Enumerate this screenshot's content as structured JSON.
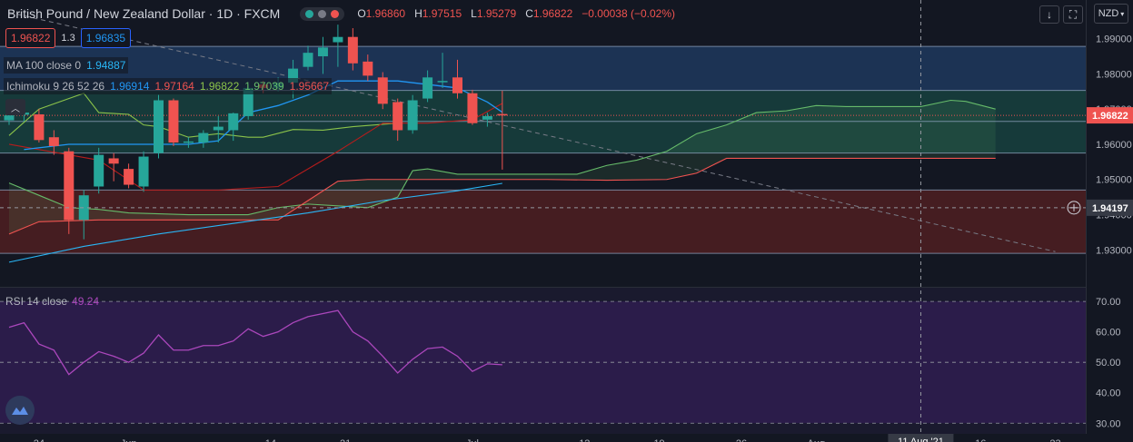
{
  "header": {
    "title": "British Pound / New Zealand Dollar · 1D · FXCM",
    "ohlc": {
      "o_label": "O",
      "o": "1.96860",
      "h_label": "H",
      "h": "1.97515",
      "l_label": "L",
      "l": "1.95279",
      "c_label": "C",
      "c": "1.96822",
      "change": "−0.00038 (−0.02%)"
    },
    "status_dot_colors": [
      "#26a69a",
      "#787b86",
      "#ef5350"
    ]
  },
  "price_boxes": {
    "sell": "1.96822",
    "spread": "1.3",
    "buy": "1.96835"
  },
  "indicators": {
    "ma": {
      "name": "MA 100 close 0",
      "value": "1.94887",
      "color": "#29b6f6"
    },
    "ichimoku": {
      "name": "Ichimoku 9 26 52 26",
      "values": [
        {
          "v": "1.96914",
          "color": "#2196f3"
        },
        {
          "v": "1.97164",
          "color": "#ef5350"
        },
        {
          "v": "1.96822",
          "color": "#8bc34a"
        },
        {
          "v": "1.97039",
          "color": "#66bb6a"
        },
        {
          "v": "1.95667",
          "color": "#ef5350"
        }
      ]
    },
    "rsi": {
      "name": "RSI 14 close",
      "value": "49.24",
      "color": "#ab47bc"
    }
  },
  "toolbar": {
    "down_icon": "arrow-down-icon",
    "fullscreen_icon": "fullscreen-icon",
    "currency": "NZD"
  },
  "price_axis": {
    "ticks": [
      "1.99000",
      "1.98000",
      "1.97000",
      "1.96000",
      "1.95000",
      "1.94000",
      "1.93000"
    ],
    "last_price": "1.96822",
    "crosshair_price": "1.94197"
  },
  "rsi_axis": {
    "ticks": [
      "70.00",
      "60.00",
      "50.00",
      "40.00",
      "30.00"
    ]
  },
  "time_axis": {
    "labels": [
      "24",
      "Jun",
      "14",
      "21",
      "Jul",
      "12",
      "19",
      "26",
      "Aug",
      "16",
      "23"
    ],
    "crosshair_label": "11 Aug '21"
  },
  "chart_data": {
    "type": "candlestick",
    "candles": [
      {
        "o": 1.9668,
        "h": 1.9692,
        "l": 1.9655,
        "c": 1.9682
      },
      {
        "o": 1.9684,
        "h": 1.9705,
        "l": 1.9665,
        "c": 1.969
      },
      {
        "o": 1.9685,
        "h": 1.97,
        "l": 1.9605,
        "c": 1.9612
      },
      {
        "o": 1.962,
        "h": 1.964,
        "l": 1.957,
        "c": 1.9595
      },
      {
        "o": 1.958,
        "h": 1.959,
        "l": 1.9345,
        "c": 1.9385
      },
      {
        "o": 1.9385,
        "h": 1.947,
        "l": 1.933,
        "c": 1.9455
      },
      {
        "o": 1.948,
        "h": 1.959,
        "l": 1.946,
        "c": 1.957
      },
      {
        "o": 1.956,
        "h": 1.9575,
        "l": 1.9495,
        "c": 1.9545
      },
      {
        "o": 1.953,
        "h": 1.9545,
        "l": 1.9475,
        "c": 1.9485
      },
      {
        "o": 1.948,
        "h": 1.958,
        "l": 1.9465,
        "c": 1.9565
      },
      {
        "o": 1.9575,
        "h": 1.974,
        "l": 1.956,
        "c": 1.9725
      },
      {
        "o": 1.9725,
        "h": 1.973,
        "l": 1.9595,
        "c": 1.9605
      },
      {
        "o": 1.9605,
        "h": 1.962,
        "l": 1.959,
        "c": 1.9608
      },
      {
        "o": 1.9605,
        "h": 1.964,
        "l": 1.959,
        "c": 1.9632
      },
      {
        "o": 1.964,
        "h": 1.968,
        "l": 1.9605,
        "c": 1.965
      },
      {
        "o": 1.964,
        "h": 1.969,
        "l": 1.961,
        "c": 1.9688
      },
      {
        "o": 1.968,
        "h": 1.977,
        "l": 1.967,
        "c": 1.976
      },
      {
        "o": 1.977,
        "h": 1.978,
        "l": 1.9745,
        "c": 1.976
      },
      {
        "o": 1.976,
        "h": 1.979,
        "l": 1.975,
        "c": 1.9775
      },
      {
        "o": 1.9775,
        "h": 1.984,
        "l": 1.973,
        "c": 1.9815
      },
      {
        "o": 1.982,
        "h": 1.988,
        "l": 1.981,
        "c": 1.986
      },
      {
        "o": 1.985,
        "h": 1.9905,
        "l": 1.98,
        "c": 1.9875
      },
      {
        "o": 1.989,
        "h": 1.994,
        "l": 1.982,
        "c": 1.9905
      },
      {
        "o": 1.9905,
        "h": 1.993,
        "l": 1.981,
        "c": 1.983
      },
      {
        "o": 1.9835,
        "h": 1.9855,
        "l": 1.978,
        "c": 1.9795
      },
      {
        "o": 1.979,
        "h": 1.9805,
        "l": 1.97,
        "c": 1.9715
      },
      {
        "o": 1.972,
        "h": 1.973,
        "l": 1.961,
        "c": 1.964
      },
      {
        "o": 1.964,
        "h": 1.974,
        "l": 1.963,
        "c": 1.9725
      },
      {
        "o": 1.973,
        "h": 1.981,
        "l": 1.972,
        "c": 1.979
      },
      {
        "o": 1.978,
        "h": 1.986,
        "l": 1.976,
        "c": 1.978
      },
      {
        "o": 1.979,
        "h": 1.984,
        "l": 1.973,
        "c": 1.9745
      },
      {
        "o": 1.9745,
        "h": 1.9755,
        "l": 1.9655,
        "c": 1.966
      },
      {
        "o": 1.967,
        "h": 1.969,
        "l": 1.965,
        "c": 1.968
      },
      {
        "o": 1.9686,
        "h": 1.9752,
        "l": 1.9528,
        "c": 1.9682
      }
    ],
    "ma100": [
      [
        0,
        1.9265
      ],
      [
        5,
        1.931
      ],
      [
        10,
        1.9345
      ],
      [
        15,
        1.9375
      ],
      [
        20,
        1.9405
      ],
      [
        25,
        1.944
      ],
      [
        30,
        1.9468
      ],
      [
        33,
        1.9489
      ]
    ],
    "tenkan": [
      [
        1,
        1.9585
      ],
      [
        4,
        1.96
      ],
      [
        8,
        1.96
      ],
      [
        12,
        1.96
      ],
      [
        14,
        1.961
      ],
      [
        16,
        1.969
      ],
      [
        18,
        1.971
      ],
      [
        20,
        1.974
      ],
      [
        22,
        1.978
      ],
      [
        24,
        1.978
      ],
      [
        26,
        1.978
      ],
      [
        28,
        1.977
      ],
      [
        30,
        1.976
      ],
      [
        32,
        1.972
      ],
      [
        33,
        1.9691
      ]
    ],
    "kijun": [
      [
        0,
        1.96
      ],
      [
        6,
        1.9555
      ],
      [
        9,
        1.947
      ],
      [
        14,
        1.947
      ],
      [
        18,
        1.948
      ],
      [
        22,
        1.958
      ],
      [
        25,
        1.966
      ],
      [
        28,
        1.966
      ],
      [
        31,
        1.967
      ],
      [
        33,
        1.9716
      ]
    ],
    "chikou": [
      [
        0,
        1.9625
      ],
      [
        2,
        1.97
      ],
      [
        5,
        1.9745
      ],
      [
        6,
        1.969
      ],
      [
        8,
        1.9685
      ],
      [
        9,
        1.9655
      ],
      [
        10,
        1.965
      ],
      [
        12,
        1.962
      ],
      [
        14,
        1.963
      ],
      [
        16,
        1.962
      ],
      [
        17,
        1.962
      ],
      [
        19,
        1.9642
      ],
      [
        21,
        1.964
      ],
      [
        23,
        1.965
      ],
      [
        26,
        1.966
      ]
    ],
    "senkou_a": [
      [
        0,
        1.949
      ],
      [
        2,
        1.9455
      ],
      [
        4,
        1.942
      ],
      [
        6,
        1.9415
      ],
      [
        8,
        1.9405
      ],
      [
        12,
        1.94
      ],
      [
        16,
        1.94
      ],
      [
        18,
        1.942
      ],
      [
        20,
        1.943
      ],
      [
        24,
        1.942
      ],
      [
        26,
        1.945
      ],
      [
        27,
        1.9525
      ],
      [
        28,
        1.953
      ],
      [
        30,
        1.9515
      ],
      [
        34,
        1.9515
      ],
      [
        38,
        1.9515
      ],
      [
        40,
        1.954
      ],
      [
        42,
        1.9555
      ],
      [
        44,
        1.958
      ],
      [
        46,
        1.963
      ],
      [
        48,
        1.9655
      ],
      [
        50,
        1.969
      ],
      [
        52,
        1.9695
      ],
      [
        54,
        1.971
      ],
      [
        56,
        1.9707
      ],
      [
        58,
        1.9707
      ],
      [
        61,
        1.9707
      ],
      [
        63,
        1.9725
      ],
      [
        64,
        1.9722
      ],
      [
        66,
        1.97
      ]
    ],
    "senkou_b": [
      [
        0,
        1.9345
      ],
      [
        2,
        1.938
      ],
      [
        6,
        1.9385
      ],
      [
        10,
        1.9385
      ],
      [
        14,
        1.9385
      ],
      [
        18,
        1.9385
      ],
      [
        20,
        1.944
      ],
      [
        22,
        1.9495
      ],
      [
        24,
        1.95
      ],
      [
        28,
        1.95
      ],
      [
        32,
        1.95
      ],
      [
        36,
        1.95
      ],
      [
        40,
        1.9498
      ],
      [
        44,
        1.95
      ],
      [
        46,
        1.9518
      ],
      [
        48,
        1.956
      ],
      [
        52,
        1.956
      ],
      [
        56,
        1.956
      ],
      [
        60,
        1.956
      ],
      [
        66,
        1.956
      ]
    ],
    "rsi": [
      [
        0,
        61.5
      ],
      [
        1,
        63
      ],
      [
        2,
        56
      ],
      [
        3,
        54
      ],
      [
        4,
        46
      ],
      [
        5,
        50
      ],
      [
        6,
        53.5
      ],
      [
        7,
        52
      ],
      [
        8,
        50
      ],
      [
        9,
        53
      ],
      [
        10,
        59
      ],
      [
        11,
        54
      ],
      [
        12,
        54
      ],
      [
        13,
        55.5
      ],
      [
        14,
        55.5
      ],
      [
        15,
        57
      ],
      [
        16,
        61
      ],
      [
        17,
        58.5
      ],
      [
        18,
        60
      ],
      [
        19,
        63
      ],
      [
        20,
        65
      ],
      [
        21,
        66
      ],
      [
        22,
        67
      ],
      [
        23,
        60
      ],
      [
        24,
        57
      ],
      [
        25,
        52
      ],
      [
        26,
        46.5
      ],
      [
        27,
        51
      ],
      [
        28,
        54.5
      ],
      [
        29,
        55
      ],
      [
        30,
        52
      ],
      [
        31,
        47
      ],
      [
        32,
        49.5
      ],
      [
        33,
        49.2
      ]
    ],
    "hlines": [
      1.9878,
      1.9753,
      1.9665,
      1.9575,
      1.947,
      1.929
    ],
    "trend_line": [
      [
        0,
        1.9975
      ],
      [
        70,
        1.9295
      ]
    ],
    "crosshair": {
      "bar": 61,
      "price": 1.94197
    },
    "y_range": [
      1.9195,
      2.001
    ],
    "rsi_range": [
      26.5,
      74.5
    ]
  },
  "colors": {
    "up": "#26a69a",
    "down": "#ef5350",
    "bg": "#131722",
    "rsi_bg": "#2b1c4a",
    "zone_blue": "#1c3354",
    "zone_green": "#163a3a",
    "zone_red": "#451d21"
  }
}
